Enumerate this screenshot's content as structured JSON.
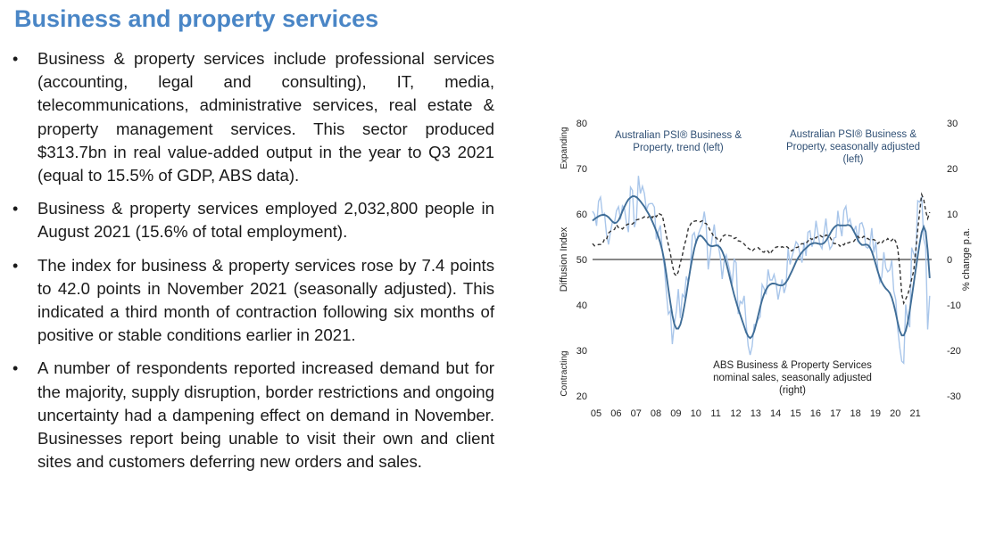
{
  "page": {
    "title": "Business and property services",
    "bullets": [
      "Business & property services include professional services (accounting, legal and consulting), IT, media, telecommunications, administrative services, real estate & property management services. This sector produced $313.7bn in real value-added output in the year to Q3 2021 (equal to 15.5% of GDP, ABS data).",
      "Business & property services employed 2,032,800 people in August 2021 (15.6% of total employment).",
      "The index for business & property services rose by 7.4 points to 42.0 points in November 2021 (seasonally adjusted). This indicated a third month of contraction following six months of positive or stable conditions earlier in 2021.",
      "A number of respondents reported increased demand but for the majority, supply disruption, border restrictions and ongoing uncertainty had a dampening effect on demand in November. Businesses report being unable to visit their own and client sites and customers deferring new orders and sales."
    ]
  },
  "chart_data": {
    "type": "line",
    "title": "",
    "ylabel_left": "Diffusion Index",
    "ylabel_right": "% change p.a.",
    "left_zone_top": "Expanding",
    "left_zone_bottom": "Contracting",
    "ylim_left": [
      20,
      80
    ],
    "ylim_right": [
      -30,
      30
    ],
    "xlim": [
      2005.0,
      2022.0
    ],
    "yticks_left": [
      "80",
      "70",
      "60",
      "50",
      "40",
      "30",
      "20"
    ],
    "yticks_right": [
      "30",
      "20",
      "10",
      "0",
      "-10",
      "-20",
      "-30"
    ],
    "xtick_labels": [
      "05",
      "06",
      "07",
      "08",
      "09",
      "10",
      "11",
      "12",
      "13",
      "14",
      "15",
      "16",
      "17",
      "18",
      "19",
      "20",
      "21"
    ],
    "annotations": [
      "Australian PSI® Business & Property, trend (left)",
      "Australian PSI® Business & Property, seasonally adjusted (left)",
      "ABS Business & Property Services nominal sales, seasonally adjusted (right)"
    ],
    "series": [
      {
        "name": "Australian PSI® Business & Property, seasonally adjusted (left)",
        "axis": "left",
        "color": "#a9c6ea",
        "x": [
          2005.0,
          2005.1,
          2005.2,
          2005.3,
          2005.4,
          2005.5,
          2005.6,
          2005.7,
          2005.8,
          2005.9,
          2006.0,
          2006.1,
          2006.2,
          2006.3,
          2006.4,
          2006.5,
          2006.6,
          2006.7,
          2006.8,
          2006.9,
          2007.0,
          2007.1,
          2007.2,
          2007.3,
          2007.4,
          2007.5,
          2007.6,
          2007.7,
          2007.8,
          2007.9,
          2008.0,
          2008.1,
          2008.2,
          2008.3,
          2008.4,
          2008.5,
          2008.6,
          2008.7,
          2008.8,
          2008.9,
          2009.0,
          2009.1,
          2009.2,
          2009.3,
          2009.4,
          2009.5,
          2009.6,
          2009.7,
          2009.8,
          2009.9,
          2010.0,
          2010.1,
          2010.2,
          2010.3,
          2010.4,
          2010.5,
          2010.6,
          2010.7,
          2010.8,
          2010.9,
          2011.0,
          2011.1,
          2011.2,
          2011.3,
          2011.4,
          2011.5,
          2011.6,
          2011.7,
          2011.8,
          2011.9,
          2012.0,
          2012.1,
          2012.2,
          2012.3,
          2012.4,
          2012.5,
          2012.6,
          2012.7,
          2012.8,
          2012.9,
          2013.0,
          2013.1,
          2013.2,
          2013.3,
          2013.4,
          2013.5,
          2013.6,
          2013.7,
          2013.8,
          2013.9,
          2014.0,
          2014.1,
          2014.2,
          2014.3,
          2014.4,
          2014.5,
          2014.6,
          2014.7,
          2014.8,
          2014.9,
          2015.0,
          2015.1,
          2015.2,
          2015.3,
          2015.4,
          2015.5,
          2015.6,
          2015.7,
          2015.8,
          2015.9,
          2016.0,
          2016.1,
          2016.2,
          2016.3,
          2016.4,
          2016.5,
          2016.6,
          2016.7,
          2016.8,
          2016.9,
          2017.0,
          2017.1,
          2017.2,
          2017.3,
          2017.4,
          2017.5,
          2017.6,
          2017.7,
          2017.8,
          2017.9,
          2018.0,
          2018.1,
          2018.2,
          2018.3,
          2018.4,
          2018.5,
          2018.6,
          2018.7,
          2018.8,
          2018.9,
          2019.0,
          2019.1,
          2019.2,
          2019.3,
          2019.4,
          2019.5,
          2019.6,
          2019.7,
          2019.8,
          2019.9,
          2020.0,
          2020.1,
          2020.2,
          2020.3,
          2020.4,
          2020.5,
          2020.6,
          2020.7,
          2020.8,
          2020.9,
          2021.0,
          2021.1,
          2021.2,
          2021.3,
          2021.4,
          2021.5,
          2021.6,
          2021.7,
          2021.8,
          2021.9
        ],
        "y": [
          60.6,
          59.9,
          57.4,
          62.8,
          63.7,
          59.7,
          60.1,
          55.6,
          53.3,
          56.1,
          58.4,
          58.1,
          60.7,
          61.6,
          58.8,
          61.8,
          61.2,
          58.0,
          56.0,
          65.9,
          65.2,
          57.1,
          58.9,
          68.4,
          64.5,
          66.1,
          64.5,
          60.8,
          62.1,
          62.3,
          62.3,
          61.5,
          54.4,
          56.2,
          57.5,
          51.7,
          48.4,
          42.7,
          38.0,
          38.7,
          31.4,
          35.7,
          38.6,
          43.5,
          37.1,
          42.3,
          41.7,
          46.3,
          45.0,
          47.7,
          55.3,
          55.9,
          53.5,
          55.5,
          56.7,
          57.6,
          60.5,
          57.3,
          47.8,
          51.3,
          54.9,
          57.7,
          53.2,
          53.3,
          50.6,
          45.7,
          49.7,
          51.0,
          49.0,
          47.1,
          44.6,
          50.0,
          49.3,
          38.0,
          40.8,
          40.3,
          42.0,
          35.9,
          31.0,
          29.0,
          30.9,
          35.7,
          35.7,
          36.8,
          37.4,
          44.5,
          43.6,
          42.3,
          47.8,
          45.5,
          45.5,
          46.7,
          44.8,
          41.2,
          43.5,
          45.6,
          42.6,
          44.2,
          52.5,
          48.9,
          50.7,
          52.2,
          53.9,
          53.3,
          51.1,
          49.3,
          53.8,
          50.8,
          56.0,
          56.3,
          52.8,
          54.2,
          58.5,
          55.7,
          53.2,
          52.4,
          55.6,
          59.0,
          54.5,
          52.3,
          53.0,
          54.7,
          54.9,
          60.7,
          57.4,
          55.1,
          60.8,
          61.7,
          58.1,
          58.9,
          57.0,
          56.2,
          57.4,
          53.8,
          57.8,
          58.1,
          56.7,
          52.8,
          52.5,
          53.0,
          56.9,
          51.5,
          53.9,
          48.0,
          45.0,
          46.1,
          51.6,
          48.2,
          47.3,
          47.7,
          49.8,
          43.1,
          41.1,
          34.7,
          30.7,
          27.6,
          27.2,
          40.1,
          36.6,
          35.1,
          52.6,
          51.3,
          50.3,
          62.9,
          62.6,
          63.8,
          54.5,
          52.8,
          34.6,
          42.0
        ]
      },
      {
        "name": "Australian PSI® Business & Property, trend (left)",
        "axis": "left",
        "color": "#3f6d97",
        "x": [
          2005.0,
          2005.1,
          2005.2,
          2005.3,
          2005.4,
          2005.5,
          2005.6,
          2005.7,
          2005.8,
          2005.9,
          2006.0,
          2006.1,
          2006.2,
          2006.3,
          2006.4,
          2006.5,
          2006.6,
          2006.7,
          2006.8,
          2006.9,
          2007.0,
          2007.1,
          2007.2,
          2007.3,
          2007.4,
          2007.5,
          2007.6,
          2007.7,
          2007.8,
          2007.9,
          2008.0,
          2008.1,
          2008.2,
          2008.3,
          2008.4,
          2008.5,
          2008.6,
          2008.7,
          2008.8,
          2008.9,
          2009.0,
          2009.1,
          2009.2,
          2009.3,
          2009.4,
          2009.5,
          2009.6,
          2009.7,
          2009.8,
          2009.9,
          2010.0,
          2010.1,
          2010.2,
          2010.3,
          2010.4,
          2010.5,
          2010.6,
          2010.7,
          2010.8,
          2010.9,
          2011.0,
          2011.1,
          2011.2,
          2011.3,
          2011.4,
          2011.5,
          2011.6,
          2011.7,
          2011.8,
          2011.9,
          2012.0,
          2012.1,
          2012.2,
          2012.3,
          2012.4,
          2012.5,
          2012.6,
          2012.7,
          2012.8,
          2012.9,
          2013.0,
          2013.1,
          2013.2,
          2013.3,
          2013.4,
          2013.5,
          2013.6,
          2013.7,
          2013.8,
          2013.9,
          2014.0,
          2014.1,
          2014.2,
          2014.3,
          2014.4,
          2014.5,
          2014.6,
          2014.7,
          2014.8,
          2014.9,
          2015.0,
          2015.1,
          2015.2,
          2015.3,
          2015.4,
          2015.5,
          2015.6,
          2015.7,
          2015.8,
          2015.9,
          2016.0,
          2016.1,
          2016.2,
          2016.3,
          2016.4,
          2016.5,
          2016.6,
          2016.7,
          2016.8,
          2016.9,
          2017.0,
          2017.1,
          2017.2,
          2017.3,
          2017.4,
          2017.5,
          2017.6,
          2017.7,
          2017.8,
          2017.9,
          2018.0,
          2018.1,
          2018.2,
          2018.3,
          2018.4,
          2018.5,
          2018.6,
          2018.7,
          2018.8,
          2018.9,
          2019.0,
          2019.1,
          2019.2,
          2019.3,
          2019.4,
          2019.5,
          2019.6,
          2019.7,
          2019.8,
          2019.9,
          2020.0,
          2020.1,
          2020.2,
          2020.3,
          2020.4,
          2020.5,
          2020.6,
          2020.7,
          2020.8,
          2020.9,
          2021.0,
          2021.1,
          2021.2,
          2021.3,
          2021.4,
          2021.5,
          2021.6,
          2021.7,
          2021.8,
          2021.9
        ],
        "y": [
          58.5,
          58.9,
          59.2,
          59.5,
          59.7,
          59.8,
          59.8,
          59.6,
          59.3,
          58.8,
          58.3,
          58.0,
          58.1,
          58.6,
          59.5,
          60.6,
          61.6,
          62.5,
          63.2,
          63.6,
          63.9,
          63.9,
          63.7,
          63.3,
          62.8,
          62.2,
          61.6,
          60.8,
          60.1,
          59.3,
          58.3,
          57.3,
          56.2,
          55.0,
          53.6,
          51.9,
          49.6,
          46.7,
          43.6,
          40.5,
          37.8,
          35.8,
          34.8,
          34.8,
          35.7,
          37.4,
          39.7,
          42.3,
          45.1,
          47.8,
          50.3,
          52.4,
          54.0,
          55.0,
          55.3,
          55.0,
          54.5,
          53.9,
          53.3,
          53.0,
          52.9,
          53.0,
          53.1,
          53.0,
          52.6,
          51.8,
          50.7,
          49.2,
          47.5,
          45.7,
          43.9,
          42.2,
          40.7,
          39.2,
          37.9,
          36.6,
          35.3,
          34.0,
          33.1,
          32.7,
          33.1,
          34.2,
          35.8,
          37.6,
          39.5,
          41.1,
          42.4,
          43.4,
          44.1,
          44.5,
          44.7,
          44.7,
          44.6,
          44.4,
          44.3,
          44.3,
          44.5,
          45.0,
          45.7,
          46.6,
          47.5,
          48.5,
          49.5,
          50.3,
          51.0,
          51.6,
          52.1,
          52.5,
          52.9,
          53.3,
          53.5,
          53.6,
          53.6,
          53.5,
          53.4,
          53.4,
          53.6,
          54.1,
          54.8,
          55.6,
          56.4,
          57.0,
          57.4,
          57.6,
          57.5,
          57.5,
          57.5,
          57.5,
          57.6,
          57.5,
          57.0,
          56.2,
          55.3,
          54.3,
          53.6,
          53.2,
          53.2,
          53.3,
          53.2,
          52.7,
          51.8,
          50.4,
          48.9,
          47.4,
          46.0,
          45.0,
          44.2,
          43.6,
          43.2,
          42.6,
          41.6,
          40.1,
          38.2,
          36.1,
          34.3,
          33.3,
          33.3,
          34.3,
          36.2,
          38.7,
          41.6,
          44.7,
          47.8,
          50.8,
          53.6,
          56.0,
          57.2,
          56.1,
          52.1,
          45.9
        ]
      },
      {
        "name": "ABS Business & Property Services nominal sales, seasonally adjusted (right)",
        "axis": "right",
        "color": "#333333",
        "dash": "4,3",
        "x": [
          2005.0,
          2005.1,
          2005.2,
          2005.3,
          2005.4,
          2005.5,
          2005.6,
          2005.7,
          2005.8,
          2005.9,
          2006.0,
          2006.1,
          2006.2,
          2006.3,
          2006.4,
          2006.5,
          2006.6,
          2006.7,
          2006.8,
          2006.9,
          2007.0,
          2007.1,
          2007.2,
          2007.3,
          2007.4,
          2007.5,
          2007.6,
          2007.7,
          2007.8,
          2007.9,
          2008.0,
          2008.1,
          2008.2,
          2008.3,
          2008.4,
          2008.5,
          2008.6,
          2008.7,
          2008.8,
          2008.9,
          2009.0,
          2009.1,
          2009.2,
          2009.3,
          2009.4,
          2009.5,
          2009.6,
          2009.7,
          2009.8,
          2009.9,
          2010.0,
          2010.1,
          2010.2,
          2010.3,
          2010.4,
          2010.5,
          2010.6,
          2010.7,
          2010.8,
          2010.9,
          2011.0,
          2011.1,
          2011.2,
          2011.3,
          2011.4,
          2011.5,
          2011.6,
          2011.7,
          2011.8,
          2011.9,
          2012.0,
          2012.1,
          2012.2,
          2012.3,
          2012.4,
          2012.5,
          2012.6,
          2012.7,
          2012.8,
          2012.9,
          2013.0,
          2013.1,
          2013.2,
          2013.3,
          2013.4,
          2013.5,
          2013.6,
          2013.7,
          2013.8,
          2013.9,
          2014.0,
          2014.1,
          2014.2,
          2014.3,
          2014.4,
          2014.5,
          2014.6,
          2014.7,
          2014.8,
          2014.9,
          2015.0,
          2015.1,
          2015.2,
          2015.3,
          2015.4,
          2015.5,
          2015.6,
          2015.7,
          2015.8,
          2015.9,
          2016.0,
          2016.1,
          2016.2,
          2016.3,
          2016.4,
          2016.5,
          2016.6,
          2016.7,
          2016.8,
          2016.9,
          2017.0,
          2017.1,
          2017.2,
          2017.3,
          2017.4,
          2017.5,
          2017.6,
          2017.7,
          2017.8,
          2017.9,
          2018.0,
          2018.1,
          2018.2,
          2018.3,
          2018.4,
          2018.5,
          2018.6,
          2018.7,
          2018.8,
          2018.9,
          2019.0,
          2019.1,
          2019.2,
          2019.3,
          2019.4,
          2019.5,
          2019.6,
          2019.7,
          2019.8,
          2019.9,
          2020.0,
          2020.1,
          2020.2,
          2020.3,
          2020.4,
          2020.5,
          2020.6,
          2020.7,
          2020.8,
          2020.9,
          2021.0,
          2021.1,
          2021.2,
          2021.3,
          2021.4,
          2021.5,
          2021.6,
          2021.7,
          2021.8,
          2021.9
        ],
        "y": [
          3.5,
          3.0,
          3.1,
          3.3,
          3.3,
          3.5,
          4.5,
          4.4,
          5.8,
          6.2,
          6.4,
          6.6,
          7.6,
          7.0,
          7.0,
          6.7,
          7.2,
          7.6,
          7.8,
          7.6,
          7.8,
          8.2,
          8.7,
          8.8,
          9.0,
          9.1,
          9.4,
          9.1,
          9.3,
          9.8,
          9.2,
          9.8,
          9.4,
          10.2,
          9.9,
          9.7,
          7.5,
          5.2,
          3.3,
          1.3,
          -1.2,
          -3.1,
          -3.6,
          -2.7,
          -0.7,
          0.9,
          3.1,
          4.6,
          6.8,
          7.6,
          8.4,
          8.4,
          8.5,
          8.4,
          8.3,
          8.5,
          8.0,
          7.9,
          7.3,
          6.3,
          5.7,
          4.8,
          4.8,
          4.2,
          4.0,
          5.0,
          5.3,
          5.5,
          5.3,
          5.2,
          5.1,
          4.6,
          4.8,
          4.1,
          4.0,
          3.8,
          3.4,
          2.9,
          2.5,
          2.2,
          1.8,
          2.3,
          2.5,
          2.6,
          2.2,
          1.7,
          1.6,
          2.1,
          1.8,
          1.2,
          1.9,
          2.3,
          2.7,
          2.8,
          2.6,
          2.8,
          2.6,
          2.9,
          2.6,
          2.0,
          1.9,
          2.4,
          2.6,
          2.7,
          3.2,
          3.5,
          3.4,
          3.6,
          4.0,
          4.7,
          4.4,
          4.9,
          4.7,
          5.2,
          5.3,
          5.0,
          4.8,
          5.4,
          5.2,
          4.9,
          4.2,
          3.5,
          3.5,
          3.5,
          2.9,
          3.4,
          3.2,
          3.8,
          3.6,
          3.8,
          3.8,
          4.0,
          4.6,
          5.1,
          4.6,
          4.7,
          5.1,
          4.6,
          4.6,
          4.3,
          4.3,
          4.4,
          4.1,
          3.5,
          3.9,
          3.6,
          4.2,
          4.1,
          4.6,
          4.0,
          4.2,
          4.7,
          3.9,
          2.4,
          -1.7,
          -7.6,
          -9.6,
          -8.7,
          -7.7,
          -6.2,
          -4.3,
          -2.5,
          1.8,
          6.6,
          10.6,
          14.3,
          13.2,
          10.7,
          9.0,
          10.4
        ]
      }
    ]
  }
}
